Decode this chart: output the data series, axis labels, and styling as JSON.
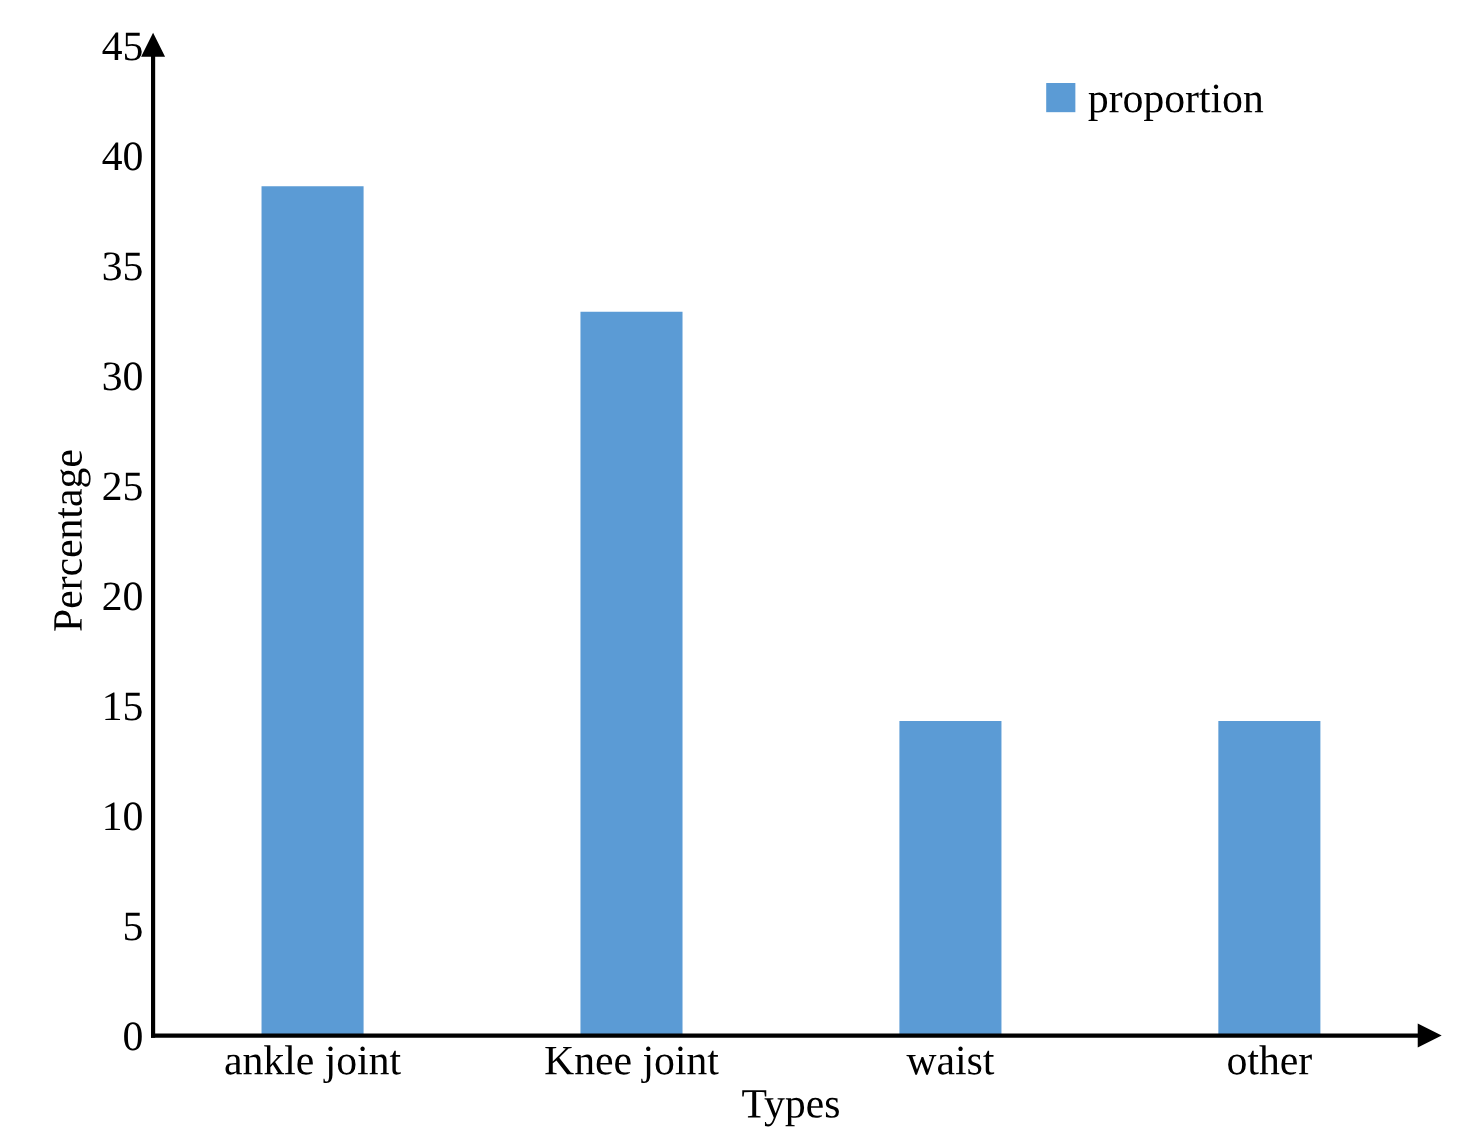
{
  "chart_data": {
    "type": "bar",
    "xlabel": "Types",
    "ylabel": "Percentage",
    "categories": [
      "ankle joint",
      "Knee joint",
      "waist",
      "other"
    ],
    "series": [
      {
        "name": "proportion",
        "color": "#5b9bd5",
        "values": [
          38.6,
          32.9,
          14.3,
          14.3
        ]
      }
    ],
    "ylim": [
      0,
      45
    ],
    "yticks": [
      0,
      5,
      10,
      15,
      20,
      25,
      30,
      35,
      40,
      45
    ],
    "legend": "top right",
    "grid": false
  }
}
